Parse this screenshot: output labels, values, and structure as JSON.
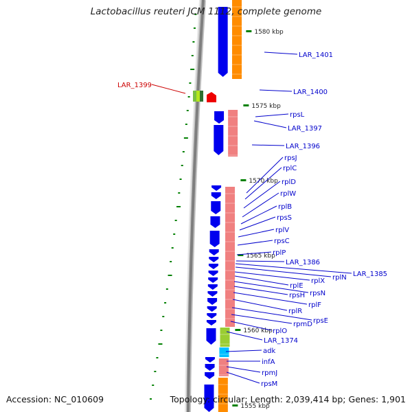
{
  "title": "Lactobacillus reuteri JCM 1112, complete genome",
  "footer": {
    "accession": "Accession: NC_010609",
    "topology": "Topology: circular;",
    "length": "Length: 2,039,414 bp;",
    "genes": "Genes: 1,901"
  },
  "colors": {
    "forward_cds": "#0000ee",
    "ribosomal_band": "#f08080",
    "orange_band": "#ff8c00",
    "green_band": "#9acd32",
    "cyan_band": "#00bfff",
    "highlight_gene": "#ee0000",
    "tick": "#008000",
    "label_line": "#0000cc",
    "highlight_label": "#cc0000"
  },
  "ticks": [
    "1580 kbp",
    "1575 kbp",
    "1570 kbp",
    "1565 kbp",
    "1560 kbp",
    "1555 kbp"
  ],
  "gene_labels": [
    {
      "name": "LAR_1401",
      "highlight": false
    },
    {
      "name": "LAR_1400",
      "highlight": false
    },
    {
      "name": "LAR_1399",
      "highlight": true
    },
    {
      "name": "rpsL",
      "highlight": false
    },
    {
      "name": "LAR_1397",
      "highlight": false
    },
    {
      "name": "LAR_1396",
      "highlight": false
    },
    {
      "name": "rpsJ",
      "highlight": false
    },
    {
      "name": "rplC",
      "highlight": false
    },
    {
      "name": "rplD",
      "highlight": false
    },
    {
      "name": "rplW",
      "highlight": false
    },
    {
      "name": "rplB",
      "highlight": false
    },
    {
      "name": "rpsS",
      "highlight": false
    },
    {
      "name": "rplV",
      "highlight": false
    },
    {
      "name": "rpsC",
      "highlight": false
    },
    {
      "name": "rplP",
      "highlight": false
    },
    {
      "name": "LAR_1386",
      "highlight": false
    },
    {
      "name": "LAR_1385",
      "highlight": false
    },
    {
      "name": "rplN",
      "highlight": false
    },
    {
      "name": "rplX",
      "highlight": false
    },
    {
      "name": "rplE",
      "highlight": false
    },
    {
      "name": "rpsN",
      "highlight": false
    },
    {
      "name": "rpsH",
      "highlight": false
    },
    {
      "name": "rplF",
      "highlight": false
    },
    {
      "name": "rplR",
      "highlight": false
    },
    {
      "name": "rpsE",
      "highlight": false
    },
    {
      "name": "rpmD",
      "highlight": false
    },
    {
      "name": "rplO",
      "highlight": false
    },
    {
      "name": "LAR_1374",
      "highlight": false
    },
    {
      "name": "adk",
      "highlight": false
    },
    {
      "name": "infA",
      "highlight": false
    },
    {
      "name": "rpmJ",
      "highlight": false
    },
    {
      "name": "rpsM",
      "highlight": false
    }
  ]
}
